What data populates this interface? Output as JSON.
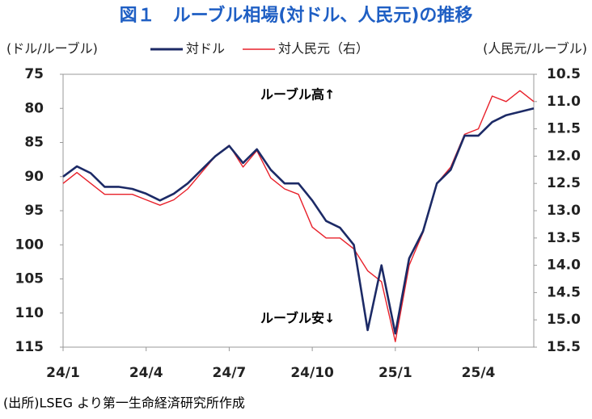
{
  "chart_data": {
    "type": "line",
    "title": "図１　ルーブル相場(対ドル、人民元)の推移",
    "y_label": "(ドル/ルーブル)",
    "y2_label": "(人民元/ルーブル)",
    "annotations": [
      "ルーブル高↑",
      "ルーブル安↓"
    ],
    "source": "(出所)LSEG より第一生命経済研究所作成",
    "categories": [
      "24/1",
      null,
      null,
      null,
      null,
      null,
      "24/4",
      null,
      null,
      null,
      null,
      null,
      "24/7",
      null,
      null,
      null,
      null,
      null,
      "24/10",
      null,
      null,
      null,
      null,
      null,
      "25/1",
      null,
      null,
      null,
      null,
      null,
      "25/4",
      null,
      null,
      null,
      null
    ],
    "series": [
      {
        "name": "対ドル",
        "color": "#1c2a66",
        "axis": "y",
        "values": [
          90,
          88.5,
          89.5,
          91.5,
          91.5,
          91.8,
          92.5,
          93.5,
          92.5,
          91,
          89,
          87,
          85.5,
          88,
          86,
          89,
          91,
          91,
          93.5,
          96.5,
          97.5,
          100,
          112.5,
          103,
          113,
          102,
          98,
          91,
          89,
          84,
          84,
          82,
          81,
          80.5,
          80
        ]
      },
      {
        "name": "対人民元（右）",
        "color": "#e8202a",
        "axis": "y2",
        "values": [
          12.5,
          12.3,
          12.5,
          12.7,
          12.7,
          12.7,
          12.8,
          12.9,
          12.8,
          12.6,
          12.3,
          12.0,
          11.8,
          12.2,
          11.9,
          12.4,
          12.6,
          12.7,
          13.3,
          13.5,
          13.5,
          13.7,
          14.1,
          14.3,
          15.4,
          14.0,
          13.4,
          12.5,
          12.2,
          11.6,
          11.5,
          10.9,
          11.0,
          10.8,
          11.0
        ]
      }
    ],
    "ylim": [
      75,
      115
    ],
    "yticks": [
      75,
      80,
      85,
      90,
      95,
      100,
      105,
      110,
      115
    ],
    "y_inverted": true,
    "y2lim": [
      10.5,
      15.5
    ],
    "y2ticks": [
      10.5,
      {
        "value": 11,
        "label": "11.0"
      },
      11.5,
      {
        "value": 12,
        "label": "12.0"
      },
      12.5,
      {
        "value": 13,
        "label": "13.0"
      },
      13.5,
      {
        "value": 14,
        "label": "14.0"
      },
      14.5,
      {
        "value": 15,
        "label": "15.0"
      },
      15.5
    ],
    "y2_inverted": true,
    "grid": false
  }
}
